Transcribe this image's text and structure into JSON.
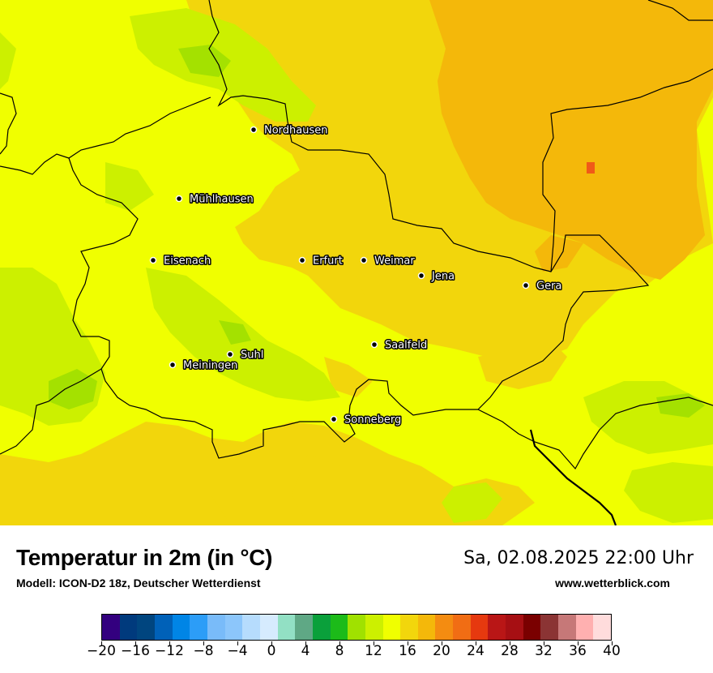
{
  "map": {
    "cities": [
      {
        "name": "Nordhausen"
      },
      {
        "name": "Mühlhausen"
      },
      {
        "name": "Eisenach"
      },
      {
        "name": "Erfurt"
      },
      {
        "name": "Weimar"
      },
      {
        "name": "Jena"
      },
      {
        "name": "Gera"
      },
      {
        "name": "Saalfeld"
      },
      {
        "name": "Suhl"
      },
      {
        "name": "Meiningen"
      },
      {
        "name": "Sonneberg"
      }
    ],
    "colors": {
      "yellow": "#f0ff00",
      "light_yellow_green": "#ccf000",
      "green": "#a4e100",
      "dark_green": "#8ad800",
      "gold": "#f2d60c",
      "orange_gold": "#f4b80a",
      "red_spot": "#f05a18",
      "border": "#000000"
    }
  },
  "legend": {
    "title": "Temperatur in 2m (in °C)",
    "model": "Modell: ICON-D2 18z, Deutscher Wetterdienst",
    "datetime": "Sa, 02.08.2025 22:00 Uhr",
    "website": "www.wetterblick.com",
    "colorbar": {
      "min": -20,
      "max": 40,
      "step": 2,
      "ticks": [
        "−20",
        "−16",
        "−12",
        "−8",
        "−4",
        "0",
        "4",
        "8",
        "12",
        "16",
        "20",
        "24",
        "28",
        "32",
        "36",
        "40"
      ],
      "colors": [
        "#33007f",
        "#003a7d",
        "#00457f",
        "#0061b8",
        "#0085e6",
        "#2c9df7",
        "#79bbf9",
        "#8cc6fb",
        "#b6dcfd",
        "#d6ebfe",
        "#92e0c4",
        "#5fa885",
        "#0aa03b",
        "#1cbb19",
        "#a0e100",
        "#ccf000",
        "#f0ff00",
        "#f2d60c",
        "#f4b80a",
        "#f48c11",
        "#f16d14",
        "#e6390f",
        "#b91616",
        "#a60f13",
        "#7a0000",
        "#8b3434",
        "#c67878",
        "#ffb0b0",
        "#ffdcdc"
      ]
    }
  }
}
